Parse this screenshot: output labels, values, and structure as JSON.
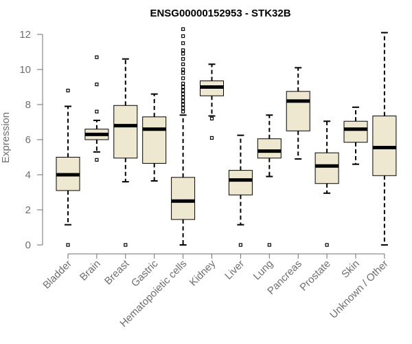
{
  "chart_data": {
    "type": "boxplot",
    "title": "ENSG00000152953 - STK32B",
    "xlabel": "",
    "ylabel": "Expression",
    "ylim": [
      0,
      12.3
    ],
    "yticks": [
      0,
      2,
      4,
      6,
      8,
      10,
      12
    ],
    "categories": [
      "Bladder",
      "Brain",
      "Breast",
      "Gastric",
      "Hematopoietic cells",
      "Kidney",
      "Liver",
      "Lung",
      "Pancreas",
      "Prostate",
      "Skin",
      "Unknown / Other"
    ],
    "boxes": [
      {
        "name": "Bladder",
        "whisker_low": 1.15,
        "q1": 3.1,
        "median": 4.0,
        "q3": 5.0,
        "whisker_high": 7.9,
        "outliers": [
          0,
          8.8
        ]
      },
      {
        "name": "Brain",
        "whisker_low": 5.3,
        "q1": 6.0,
        "median": 6.3,
        "q3": 6.6,
        "whisker_high": 7.1,
        "outliers": [
          4.85,
          7.6,
          9.15,
          10.7
        ]
      },
      {
        "name": "Breast",
        "whisker_low": 3.6,
        "q1": 4.95,
        "median": 6.8,
        "q3": 7.95,
        "whisker_high": 10.6,
        "outliers": [
          0
        ]
      },
      {
        "name": "Gastric",
        "whisker_low": 3.65,
        "q1": 4.65,
        "median": 6.6,
        "q3": 7.3,
        "whisker_high": 8.6,
        "outliers": []
      },
      {
        "name": "Hematopoietic cells",
        "whisker_low": 0.0,
        "q1": 1.45,
        "median": 2.5,
        "q3": 3.85,
        "whisker_high": 7.4,
        "outliers": [
          7.6,
          7.8,
          8.0,
          8.2,
          8.4,
          8.6,
          8.8,
          9.0,
          9.2,
          9.5,
          9.8,
          10.0,
          10.3,
          10.6,
          10.9,
          11.1,
          11.5,
          11.9,
          12.3
        ]
      },
      {
        "name": "Kidney",
        "whisker_low": 7.35,
        "q1": 8.5,
        "median": 9.0,
        "q3": 9.35,
        "whisker_high": 10.3,
        "outliers": [
          6.1,
          7.2
        ]
      },
      {
        "name": "Liver",
        "whisker_low": 1.15,
        "q1": 2.85,
        "median": 3.7,
        "q3": 4.25,
        "whisker_high": 6.25,
        "outliers": [
          0
        ]
      },
      {
        "name": "Lung",
        "whisker_low": 3.9,
        "q1": 4.95,
        "median": 5.35,
        "q3": 6.05,
        "whisker_high": 7.4,
        "outliers": [
          0
        ]
      },
      {
        "name": "Pancreas",
        "whisker_low": 4.9,
        "q1": 6.5,
        "median": 8.2,
        "q3": 8.75,
        "whisker_high": 10.1,
        "outliers": []
      },
      {
        "name": "Prostate",
        "whisker_low": 2.95,
        "q1": 3.5,
        "median": 4.5,
        "q3": 5.25,
        "whisker_high": 7.05,
        "outliers": [
          0
        ]
      },
      {
        "name": "Skin",
        "whisker_low": 4.6,
        "q1": 5.85,
        "median": 6.6,
        "q3": 7.05,
        "whisker_high": 7.85,
        "outliers": []
      },
      {
        "name": "Unknown / Other",
        "whisker_low": 0.0,
        "q1": 3.95,
        "median": 5.55,
        "q3": 7.35,
        "whisker_high": 12.1,
        "outliers": []
      }
    ],
    "colors": {
      "box_fill": "#efe8d0",
      "box_stroke": "#000000",
      "axis": "#6f6f6f",
      "text": "#6f6f6f"
    },
    "grid": false,
    "legend": "none"
  }
}
